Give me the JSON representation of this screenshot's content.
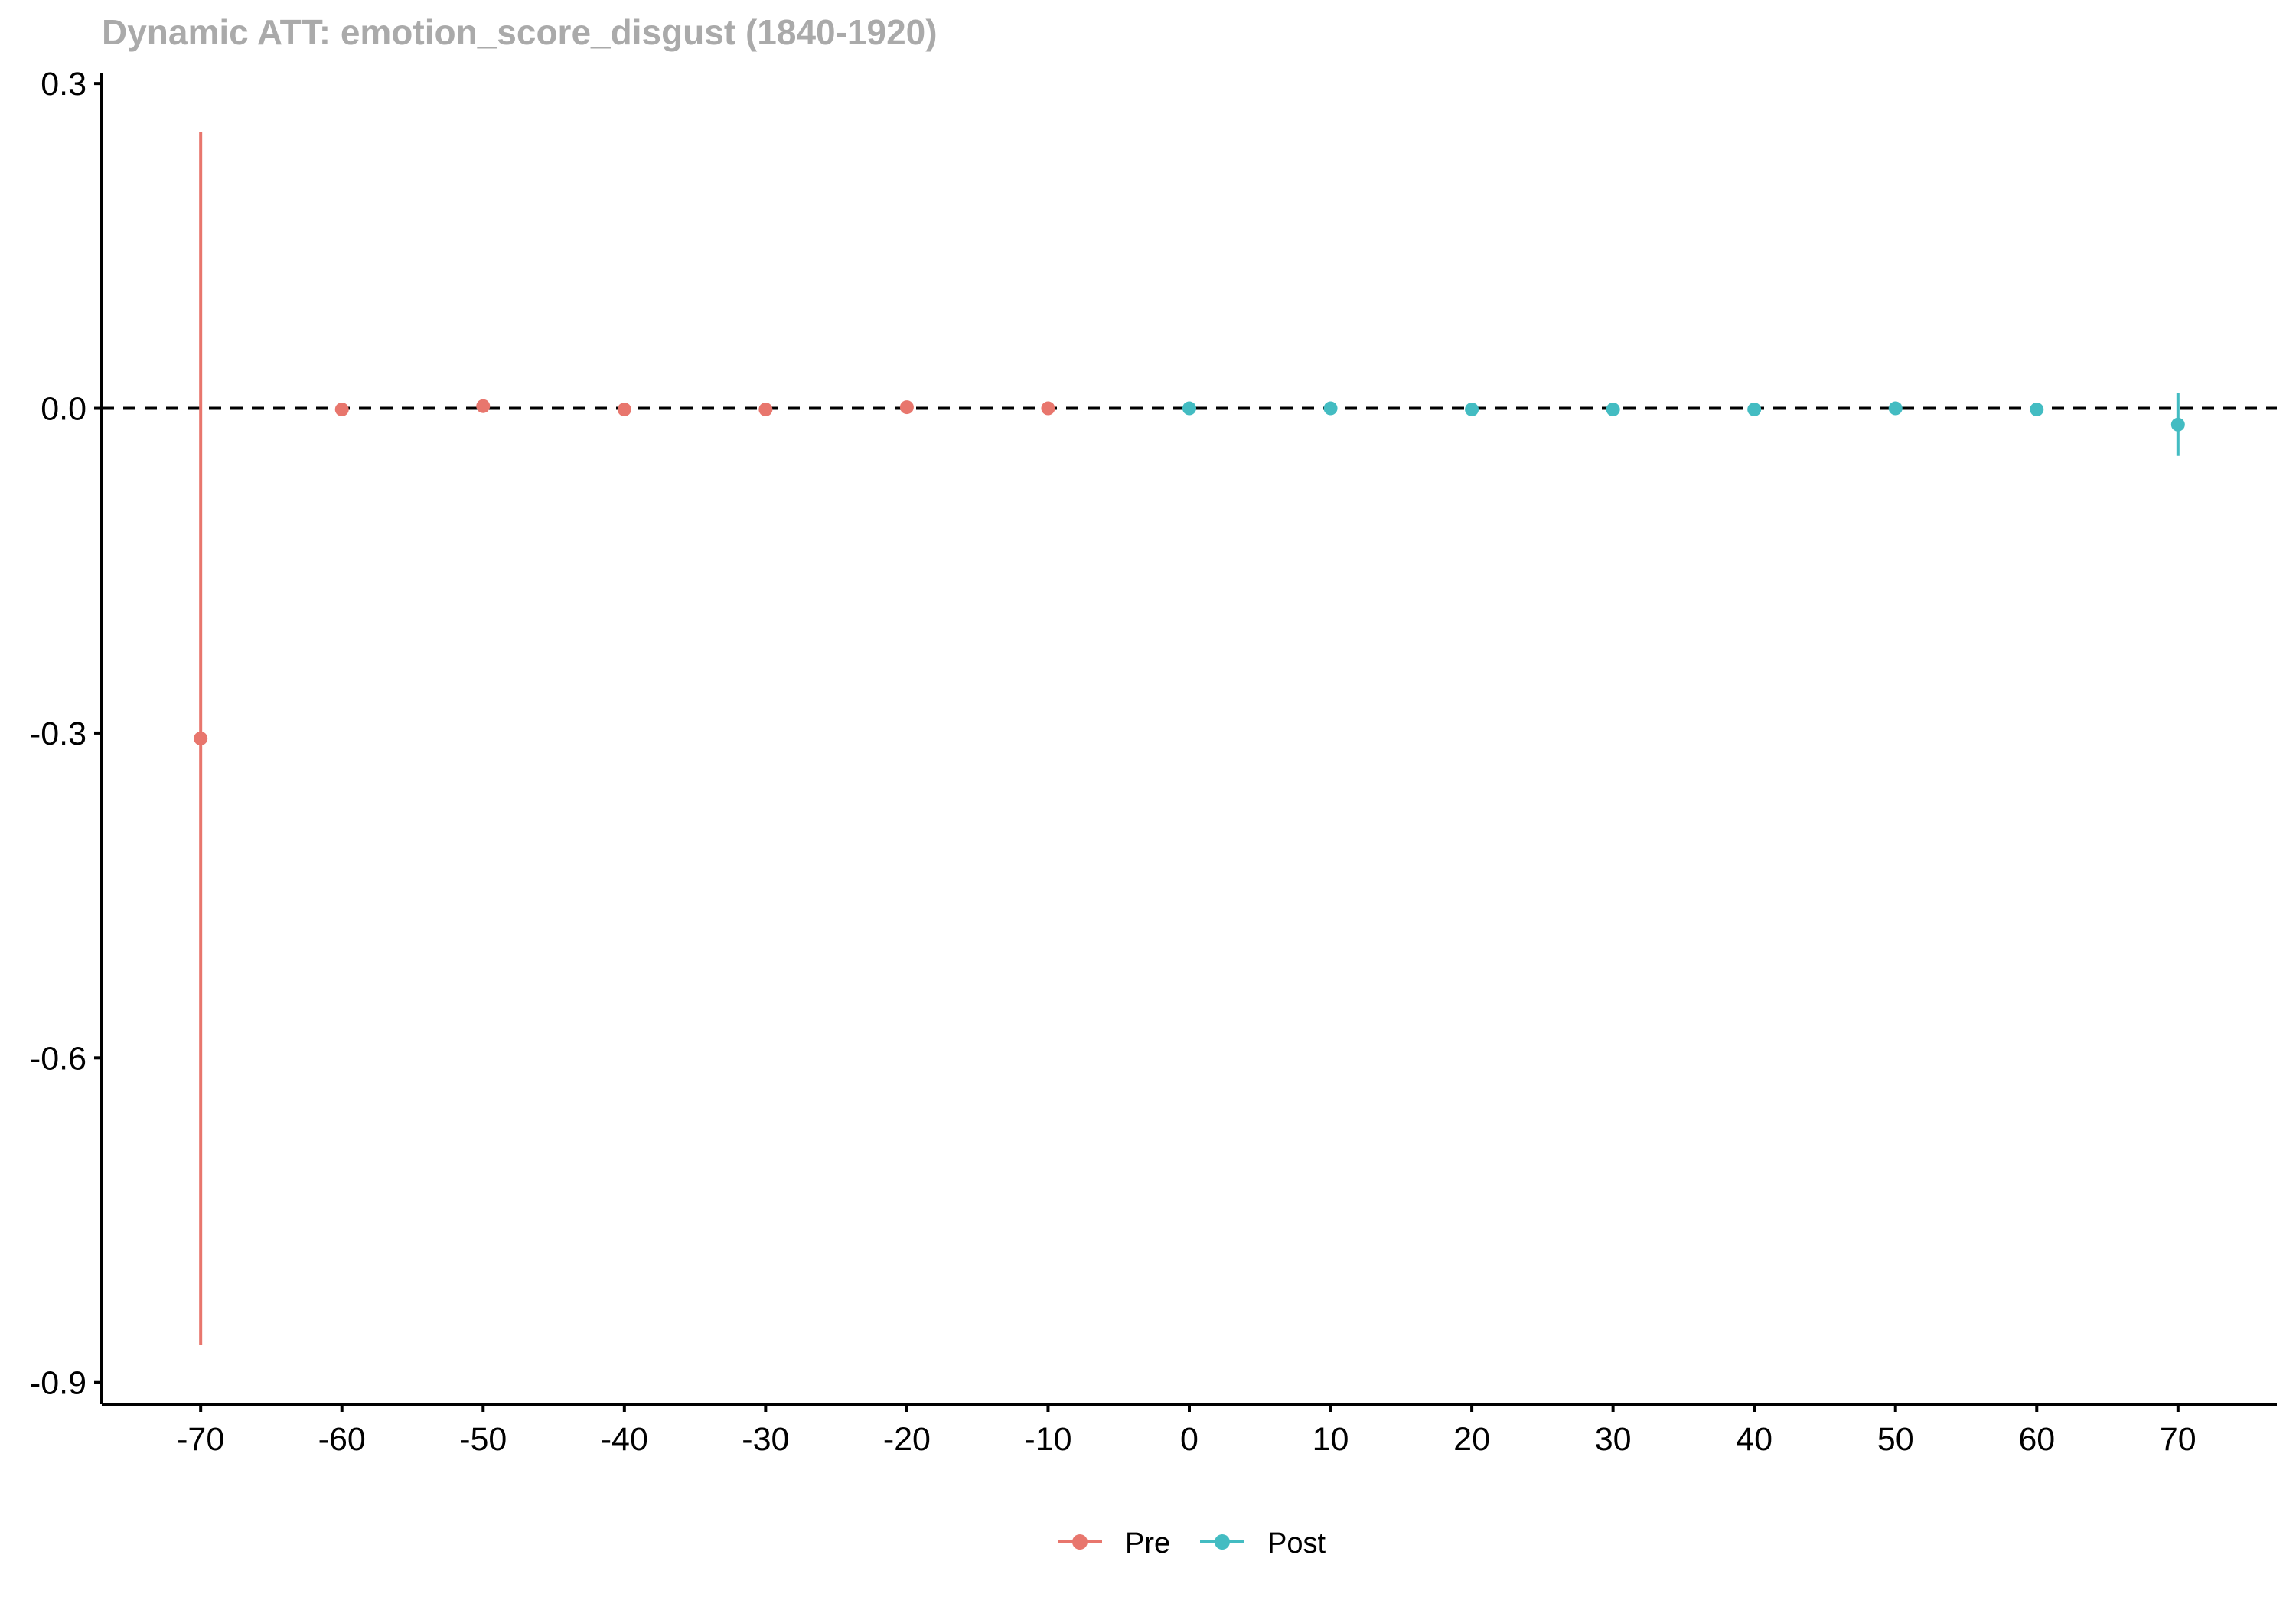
{
  "chart_data": {
    "type": "scatter",
    "title": "Dynamic ATT: emotion_score_disgust (1840-1920)",
    "xlabel": "",
    "ylabel": "",
    "xlim": [
      -77,
      77
    ],
    "ylim": [
      -0.92,
      0.31
    ],
    "x_ticks": [
      -70,
      -60,
      -50,
      -40,
      -30,
      -20,
      -10,
      0,
      10,
      20,
      30,
      40,
      50,
      60,
      70
    ],
    "y_ticks": [
      0.3,
      0.0,
      -0.3,
      -0.6,
      -0.9
    ],
    "y_tick_labels": [
      "0.3",
      "0.0",
      "-0.3",
      "-0.6",
      "-0.9"
    ],
    "reference_line": {
      "y": 0,
      "style": "dashed",
      "color": "#000000"
    },
    "grid": false,
    "legend_position": "bottom",
    "series": [
      {
        "name": "Pre",
        "color": "#E8766D",
        "points": [
          {
            "x": -70,
            "y": -0.305,
            "lower": -0.865,
            "upper": 0.255
          },
          {
            "x": -60,
            "y": -0.001,
            "lower": -0.004,
            "upper": 0.002
          },
          {
            "x": -50,
            "y": 0.002,
            "lower": -0.003,
            "upper": 0.008
          },
          {
            "x": -40,
            "y": -0.001,
            "lower": -0.003,
            "upper": 0.001
          },
          {
            "x": -30,
            "y": -0.001,
            "lower": -0.003,
            "upper": 0.001
          },
          {
            "x": -20,
            "y": 0.001,
            "lower": -0.001,
            "upper": 0.003
          },
          {
            "x": -10,
            "y": 0.0,
            "lower": -0.002,
            "upper": 0.002
          }
        ]
      },
      {
        "name": "Post",
        "color": "#43BCC2",
        "points": [
          {
            "x": 0,
            "y": 0.0,
            "lower": -0.001,
            "upper": 0.001
          },
          {
            "x": 10,
            "y": 0.0,
            "lower": -0.001,
            "upper": 0.001
          },
          {
            "x": 20,
            "y": -0.001,
            "lower": -0.002,
            "upper": 0.001
          },
          {
            "x": 30,
            "y": -0.001,
            "lower": -0.002,
            "upper": 0.001
          },
          {
            "x": 40,
            "y": -0.001,
            "lower": -0.002,
            "upper": 0.001
          },
          {
            "x": 50,
            "y": 0.0,
            "lower": -0.001,
            "upper": 0.001
          },
          {
            "x": 60,
            "y": -0.001,
            "lower": -0.002,
            "upper": 0.001
          },
          {
            "x": 70,
            "y": -0.015,
            "lower": -0.044,
            "upper": 0.014
          }
        ]
      }
    ]
  },
  "colors": {
    "title": "#AAAAAA",
    "axis": "#000000"
  }
}
